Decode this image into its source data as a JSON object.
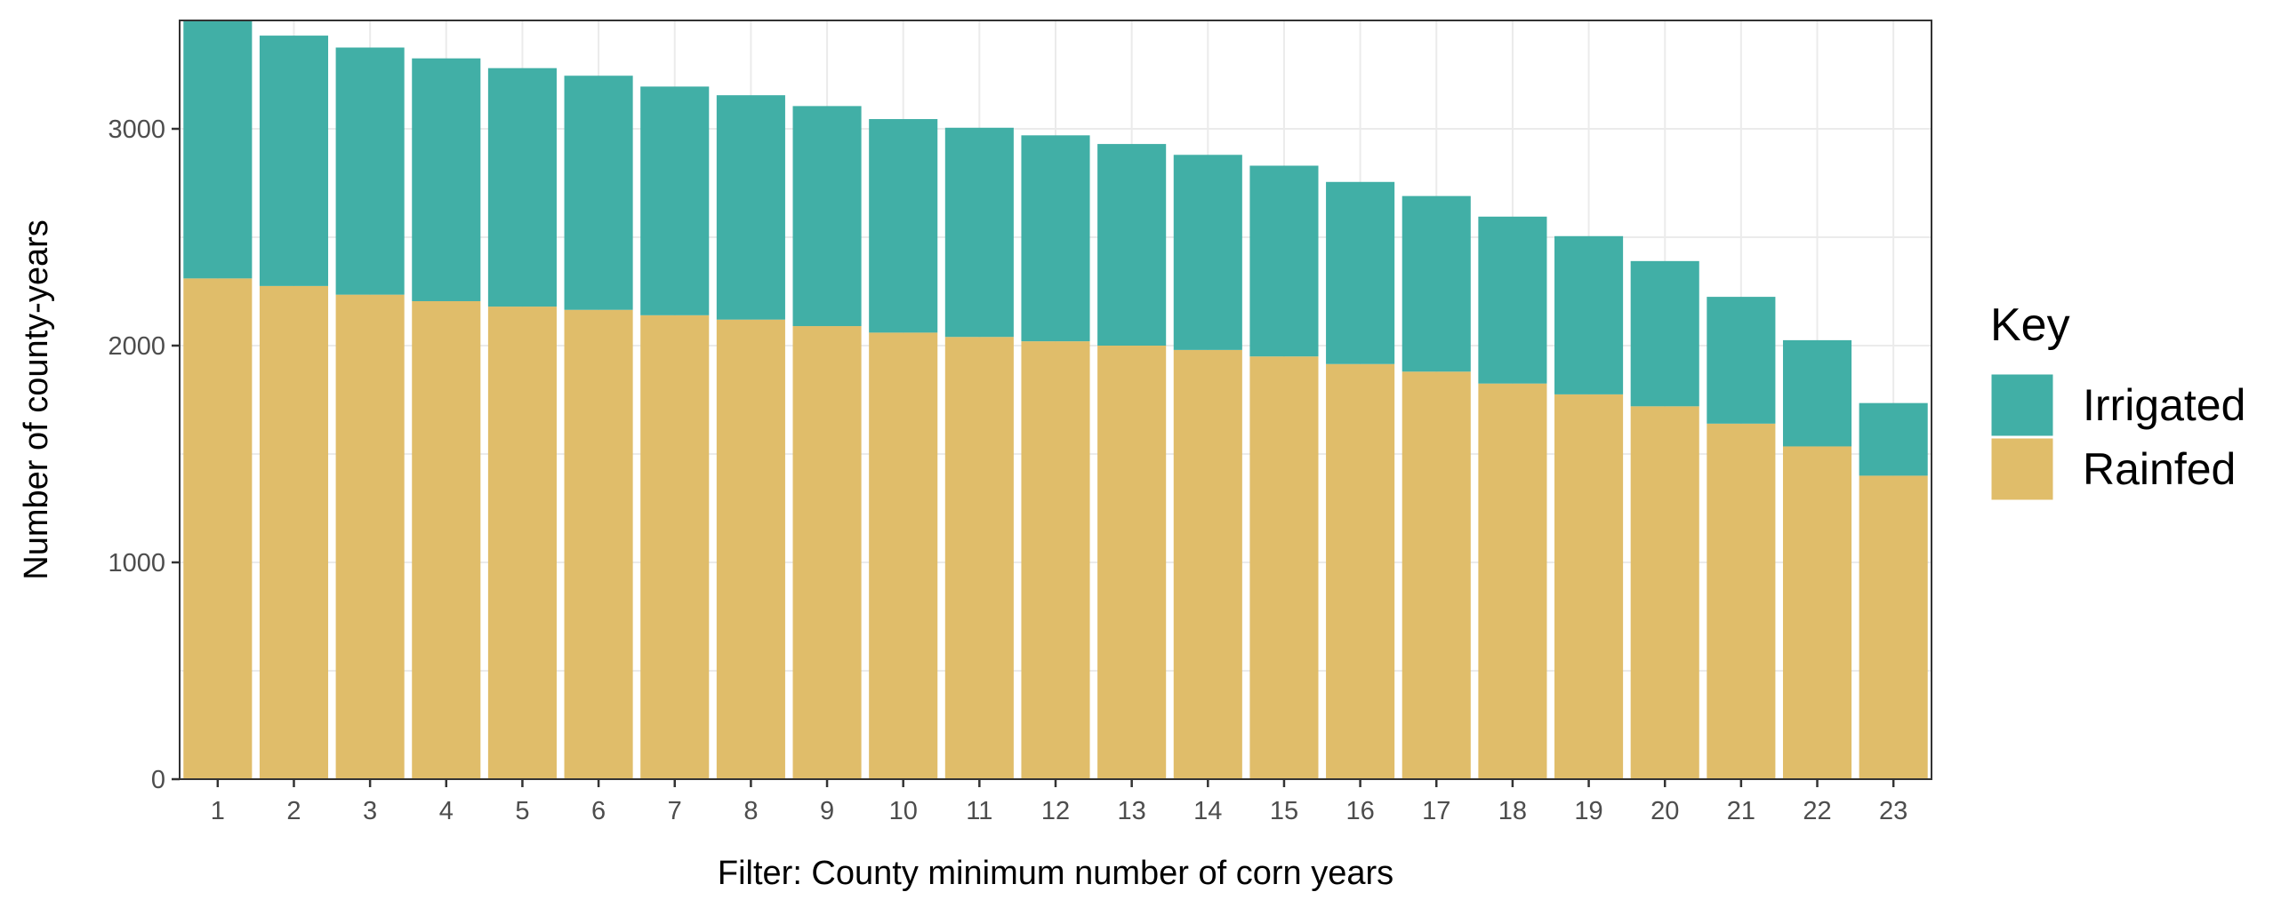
{
  "chart_data": {
    "type": "bar",
    "stacked": true,
    "title": "",
    "xlabel": "Filter: County minimum number of corn years",
    "ylabel": "Number of county-years",
    "categories": [
      "1",
      "2",
      "3",
      "4",
      "5",
      "6",
      "7",
      "8",
      "9",
      "10",
      "11",
      "12",
      "13",
      "14",
      "15",
      "16",
      "17",
      "18",
      "19",
      "20",
      "21",
      "22",
      "23"
    ],
    "series": [
      {
        "name": "Rainfed",
        "color": "#e0bd6a",
        "values": [
          2310,
          2275,
          2235,
          2205,
          2180,
          2165,
          2140,
          2120,
          2090,
          2060,
          2040,
          2020,
          2000,
          1980,
          1950,
          1915,
          1880,
          1825,
          1775,
          1720,
          1640,
          1535,
          1400
        ]
      },
      {
        "name": "Irrigated",
        "color": "#41afa6",
        "values": [
          1190,
          1155,
          1140,
          1120,
          1100,
          1080,
          1055,
          1035,
          1015,
          985,
          965,
          950,
          930,
          900,
          880,
          840,
          810,
          770,
          730,
          670,
          585,
          490,
          335
        ]
      }
    ],
    "ylim": [
      0,
      3500
    ],
    "yticks": [
      0,
      1000,
      2000,
      3000
    ],
    "grid": true,
    "legend": {
      "title": "Key",
      "position": "right",
      "entries": [
        "Irrigated",
        "Rainfed"
      ]
    }
  }
}
